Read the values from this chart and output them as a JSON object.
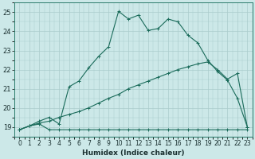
{
  "title": "",
  "xlabel": "Humidex (Indice chaleur)",
  "background_color": "#cce8e8",
  "grid_color": "#aacccc",
  "line_color": "#1a6b5a",
  "xlim": [
    -0.5,
    23.5
  ],
  "ylim": [
    18.5,
    25.5
  ],
  "yticks": [
    19,
    20,
    21,
    22,
    23,
    24,
    25
  ],
  "xticks": [
    0,
    1,
    2,
    3,
    4,
    5,
    6,
    7,
    8,
    9,
    10,
    11,
    12,
    13,
    14,
    15,
    16,
    17,
    18,
    19,
    20,
    21,
    22,
    23
  ],
  "series1_x": [
    0,
    1,
    2,
    3,
    4,
    5,
    6,
    7,
    8,
    9,
    10,
    11,
    12,
    13,
    14,
    15,
    16,
    17,
    18,
    19,
    20,
    21,
    22,
    23
  ],
  "series1_y": [
    18.85,
    19.05,
    19.15,
    18.85,
    18.85,
    18.85,
    18.85,
    18.85,
    18.85,
    18.85,
    18.85,
    18.85,
    18.85,
    18.85,
    18.85,
    18.85,
    18.85,
    18.85,
    18.85,
    18.85,
    18.85,
    18.85,
    18.85,
    18.85
  ],
  "series2_x": [
    0,
    1,
    2,
    3,
    4,
    5,
    6,
    7,
    8,
    9,
    10,
    11,
    12,
    13,
    14,
    15,
    16,
    17,
    18,
    19,
    20,
    21,
    22,
    23
  ],
  "series2_y": [
    18.85,
    19.05,
    19.2,
    19.3,
    19.5,
    19.65,
    19.8,
    20.0,
    20.25,
    20.5,
    20.7,
    21.0,
    21.2,
    21.4,
    21.6,
    21.8,
    22.0,
    22.15,
    22.3,
    22.4,
    22.0,
    21.5,
    21.8,
    19.0
  ],
  "series3_x": [
    0,
    1,
    2,
    3,
    4,
    5,
    6,
    7,
    8,
    9,
    10,
    11,
    12,
    13,
    14,
    15,
    16,
    17,
    18,
    19,
    20,
    21,
    22,
    23
  ],
  "series3_y": [
    18.85,
    19.05,
    19.3,
    19.5,
    19.15,
    21.1,
    21.4,
    22.1,
    22.7,
    23.2,
    25.05,
    24.65,
    24.85,
    24.05,
    24.15,
    24.65,
    24.5,
    23.8,
    23.4,
    22.5,
    21.9,
    21.45,
    20.5,
    19.0
  ],
  "marker_series3": [
    true,
    false,
    false,
    true,
    true,
    true,
    true,
    true,
    true,
    false,
    true,
    true,
    true,
    true,
    true,
    true,
    true,
    true,
    true,
    true,
    true,
    true,
    true,
    true
  ],
  "xlabel_fontsize": 6.5,
  "tick_fontsize": 5.5
}
